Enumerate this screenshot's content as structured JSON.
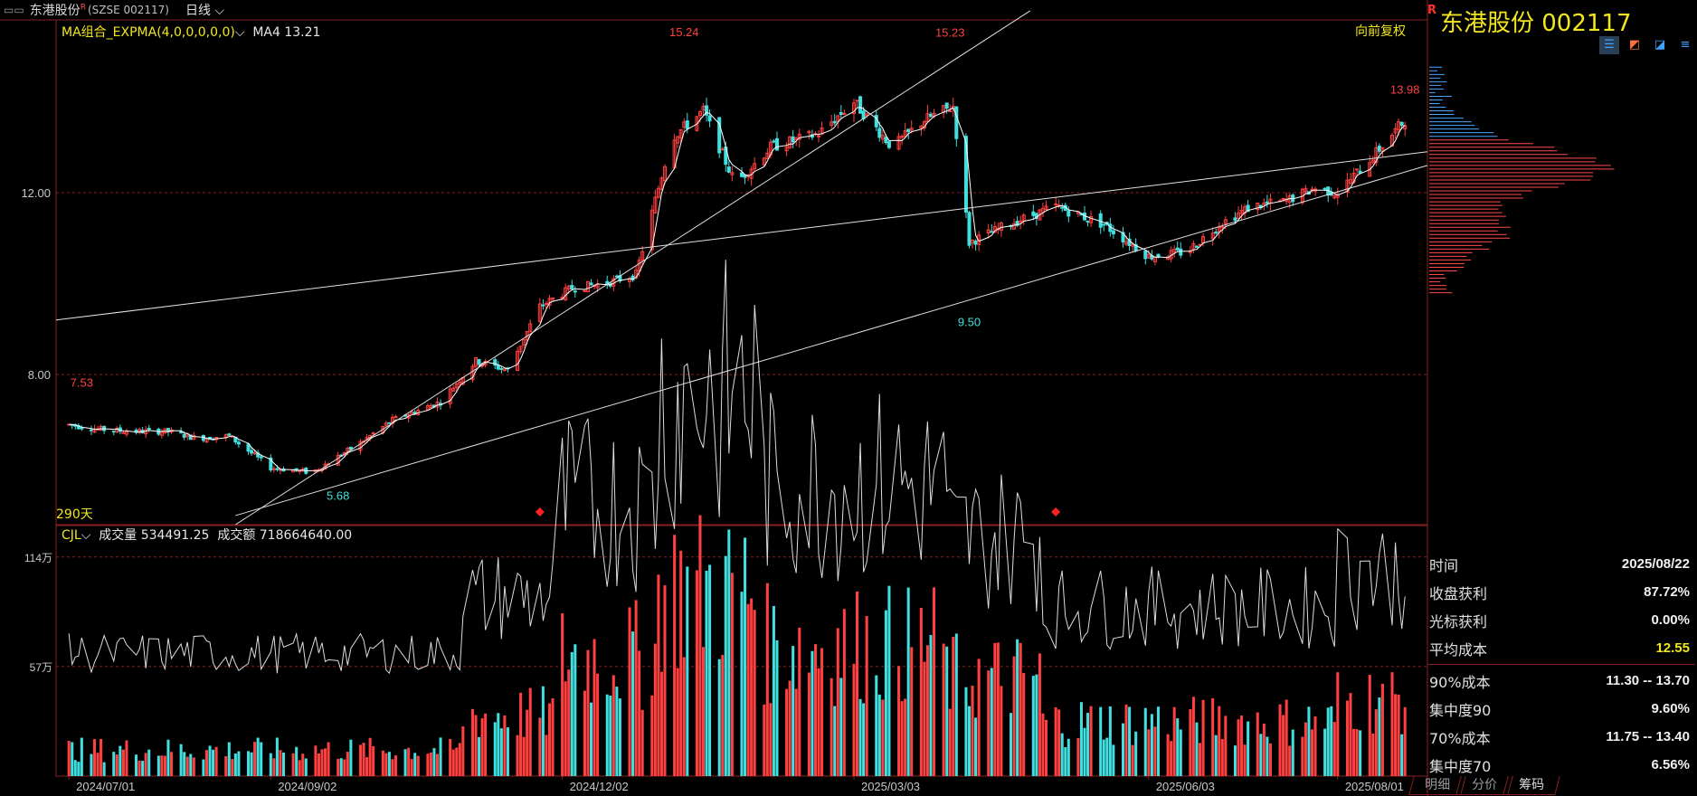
{
  "header": {
    "stock_name": "东港股份",
    "superscript": "R",
    "exchange_code": "(SZSE 002117)",
    "period": "日线"
  },
  "main_panel": {
    "indicator_label": "MA组合_EXPMA(4,0,0,0,0,0)",
    "ma_label": "MA4 13.21",
    "adjust_label": "向前复权",
    "days_label": "290天"
  },
  "volume_panel": {
    "indicator_label": "CJL",
    "volume_label": "成交量 534491.25",
    "amount_label": "成交额 718664640.00"
  },
  "right_panel": {
    "r_badge": "R",
    "title": "东港股份  002117",
    "stats": [
      {
        "key": "时间",
        "value": "2025/08/22",
        "highlight": false
      },
      {
        "key": "收盘获利",
        "value": "87.72%",
        "highlight": false
      },
      {
        "key": "光标获利",
        "value": "0.00%",
        "highlight": false
      },
      {
        "key": "平均成本",
        "value": "12.55",
        "highlight": true
      },
      {
        "key": "90%成本",
        "value": "11.30 -- 13.70",
        "highlight": false
      },
      {
        "key": "集中度90",
        "value": "9.60%",
        "highlight": false
      },
      {
        "key": "70%成本",
        "value": "11.75 -- 13.40",
        "highlight": false
      },
      {
        "key": "集中度70",
        "value": "6.56%",
        "highlight": false
      }
    ],
    "tabs": [
      "明细",
      "分价",
      "筹码"
    ]
  },
  "colors": {
    "up": "#ff4040",
    "down": "#40e0e0",
    "ma": "#ffffff",
    "label": "#f2e61e",
    "grid": "#8a1f1f"
  },
  "chart_data": [
    {
      "type": "candlestick",
      "title": "",
      "y_ticks": [
        "12.00",
        "8.00"
      ],
      "y_tick_values": [
        12.0,
        8.0
      ],
      "ylim": [
        4.7,
        15.8
      ],
      "x_ticks": [
        "2024/07/01",
        "2024/09/02",
        "2024/12/02",
        "2025/03/03",
        "2025/06/03",
        "2025/08/01"
      ],
      "annotations": [
        {
          "text": "7.53",
          "date": "2024/07/05",
          "value": 7.53,
          "color": "up"
        },
        {
          "text": "5.68",
          "date": "2024/09/23",
          "value": 5.68,
          "color": "down"
        },
        {
          "text": "15.24",
          "date": "2025/01/09",
          "value": 15.24,
          "color": "up"
        },
        {
          "text": "15.23",
          "date": "2025/04/02",
          "value": 15.23,
          "color": "up"
        },
        {
          "text": "9.50",
          "date": "2025/04/08",
          "value": 9.5,
          "color": "down"
        },
        {
          "text": "13.98",
          "date": "2025/08/22",
          "value": 13.98,
          "color": "up"
        }
      ],
      "close_series": [
        {
          "date": "2024/07/01",
          "close": 6.9
        },
        {
          "date": "2024/07/10",
          "close": 6.8
        },
        {
          "date": "2024/07/20",
          "close": 6.75
        },
        {
          "date": "2024/08/01",
          "close": 6.75
        },
        {
          "date": "2024/08/10",
          "close": 6.6
        },
        {
          "date": "2024/08/20",
          "close": 6.65
        },
        {
          "date": "2024/09/02",
          "close": 5.95
        },
        {
          "date": "2024/09/15",
          "close": 5.85
        },
        {
          "date": "2024/09/30",
          "close": 6.5
        },
        {
          "date": "2024/10/10",
          "close": 7.0
        },
        {
          "date": "2024/10/25",
          "close": 7.4
        },
        {
          "date": "2024/11/05",
          "close": 8.3
        },
        {
          "date": "2024/11/15",
          "close": 8.1
        },
        {
          "date": "2024/11/25",
          "close": 9.5
        },
        {
          "date": "2024/12/05",
          "close": 9.9
        },
        {
          "date": "2024/12/15",
          "close": 10.0
        },
        {
          "date": "2024/12/25",
          "close": 10.2
        },
        {
          "date": "2025/01/05",
          "close": 13.2
        },
        {
          "date": "2025/01/15",
          "close": 13.8
        },
        {
          "date": "2025/01/25",
          "close": 12.2
        },
        {
          "date": "2025/02/05",
          "close": 13.0
        },
        {
          "date": "2025/02/20",
          "close": 13.3
        },
        {
          "date": "2025/03/03",
          "close": 14.0
        },
        {
          "date": "2025/03/15",
          "close": 13.0
        },
        {
          "date": "2025/03/25",
          "close": 13.6
        },
        {
          "date": "2025/04/03",
          "close": 13.9
        },
        {
          "date": "2025/04/08",
          "close": 10.9
        },
        {
          "date": "2025/04/20",
          "close": 11.3
        },
        {
          "date": "2025/05/05",
          "close": 11.7
        },
        {
          "date": "2025/05/20",
          "close": 11.3
        },
        {
          "date": "2025/06/03",
          "close": 10.6
        },
        {
          "date": "2025/06/15",
          "close": 10.7
        },
        {
          "date": "2025/06/25",
          "close": 11.3
        },
        {
          "date": "2025/07/05",
          "close": 11.7
        },
        {
          "date": "2025/07/15",
          "close": 11.8
        },
        {
          "date": "2025/07/25",
          "close": 12.1
        },
        {
          "date": "2025/08/01",
          "close": 12.0
        },
        {
          "date": "2025/08/12",
          "close": 12.8
        },
        {
          "date": "2025/08/22",
          "close": 13.6
        }
      ]
    },
    {
      "type": "bar",
      "title": "",
      "y_ticks": [
        "114万",
        "57万"
      ],
      "y_tick_values": [
        1140000,
        570000
      ],
      "ylim": [
        0,
        1200000
      ],
      "series": [
        {
          "name": "成交量",
          "values": "daily volume bars, approx.: 2024/07–10 ≈ 100000–250000; 2024/11 ≈ 250000–400000; 2024/12/02 ≈ 1000000 then 500000–700000; 2025/01 peaks ≈ 1140000; 2025/02–03 ≈ 400000–1000000; 2025/05–07 ≈ 150000–400000; 2025/08/22 ≈ 534491"
        }
      ]
    }
  ]
}
